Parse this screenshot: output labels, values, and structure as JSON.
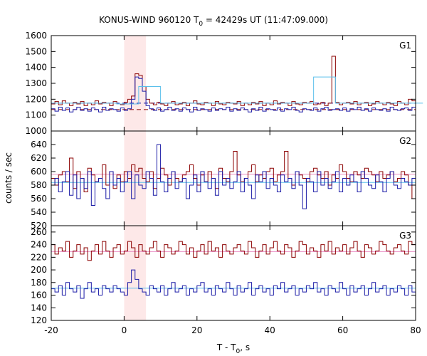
{
  "chart_data": {
    "type": "line",
    "title_main": "KONUS-WIND 960120 T",
    "title_sub": "0",
    "title_rest": " = 42429s UT (11:47:09.000)",
    "xlabel_main": "T - T",
    "xlabel_sub": "0",
    "xlabel_rest": ", s",
    "ylabel": "counts / sec",
    "xlim": [
      -20,
      80
    ],
    "xticks": [
      "-20",
      "0",
      "20",
      "40",
      "60",
      "80"
    ],
    "highlight_interval": [
      0,
      6
    ],
    "colors": {
      "red": "#8b0000",
      "blue": "#1a1aa6",
      "light_blue": "#5bc0eb",
      "pink": "#e98fc4",
      "highlight": "#fde8e8",
      "dashed_blue": "#1a1aa6",
      "dashed_red": "#8b0000"
    },
    "bin_width": 1,
    "panels": [
      {
        "name": "G1",
        "ylim": [
          1000,
          1600
        ],
        "yticks": [
          1000,
          1100,
          1200,
          1300,
          1400,
          1500,
          1600
        ],
        "background_blue": 1175,
        "background_red": 1135,
        "series": [
          {
            "x_start": -20,
            "values": [
              1170,
              1185,
              1165,
              1190,
              1175,
              1160,
              1180,
              1170,
              1185,
              1160,
              1175,
              1165,
              1190,
              1170,
              1180,
              1175,
              1160,
              1185,
              1170,
              1165,
              1180,
              1200,
              1220,
              1360,
              1350,
              1280,
              1200,
              1175,
              1165,
              1180,
              1170,
              1160,
              1175,
              1185,
              1165,
              1170,
              1180,
              1160,
              1175,
              1190,
              1170,
              1165,
              1180,
              1175,
              1160,
              1185,
              1170,
              1165,
              1180,
              1175,
              1170,
              1185,
              1160,
              1175,
              1165,
              1180,
              1170,
              1185,
              1160,
              1175,
              1165,
              1190,
              1170,
              1180,
              1175,
              1160,
              1185,
              1170,
              1165,
              1180,
              1175,
              1185,
              1165,
              1170,
              1180,
              1160,
              1175,
              1470,
              1180,
              1165,
              1175,
              1180,
              1170,
              1185,
              1165,
              1175,
              1180,
              1160,
              1170,
              1185,
              1175,
              1165,
              1180,
              1170,
              1160,
              1185,
              1175,
              1165,
              1200,
              1190
            ]
          },
          {
            "x_start": -20,
            "values": [
              1140,
              1125,
              1150,
              1130,
              1145,
              1120,
              1135,
              1150,
              1130,
              1140,
              1125,
              1145,
              1135,
              1120,
              1150,
              1130,
              1140,
              1135,
              1125,
              1145,
              1130,
              1140,
              1200,
              1340,
              1330,
              1250,
              1160,
              1140,
              1130,
              1145,
              1125,
              1135,
              1150,
              1130,
              1140,
              1125,
              1145,
              1135,
              1120,
              1150,
              1130,
              1140,
              1135,
              1125,
              1145,
              1130,
              1140,
              1135,
              1150,
              1125,
              1140,
              1130,
              1145,
              1135,
              1120,
              1140,
              1130,
              1150,
              1125,
              1140,
              1135,
              1130,
              1145,
              1125,
              1140,
              1135,
              1150,
              1130,
              1120,
              1140,
              1135,
              1130,
              1145,
              1125,
              1140,
              1150,
              1130,
              1135,
              1140,
              1130,
              1145,
              1125,
              1140,
              1135,
              1150,
              1130,
              1140,
              1125,
              1145,
              1135,
              1130,
              1140,
              1125,
              1150,
              1135,
              1130,
              1140,
              1145,
              1130,
              1150
            ]
          },
          {
            "x_start": -20,
            "bin_width": 6,
            "values": [
              1175,
              1175,
              1175,
              1170,
              1280,
              1175,
              1175,
              1175,
              1175,
              1175,
              1175,
              1175,
              1340,
              1175,
              1175,
              1175,
              1175
            ]
          }
        ]
      },
      {
        "name": "G2",
        "ylim": [
          520,
          660
        ],
        "yticks": [
          520,
          540,
          560,
          580,
          600,
          620,
          640
        ],
        "background_blue": 584,
        "background_red": 596,
        "series": [
          {
            "x_start": -20,
            "values": [
              590,
              580,
              595,
              600,
              585,
              620,
              575,
              600,
              590,
              570,
              605,
              595,
              585,
              590,
              610,
              580,
              600,
              575,
              595,
              585,
              600,
              590,
              610,
              600,
              605,
              590,
              585,
              600,
              575,
              590,
              605,
              595,
              580,
              600,
              590,
              585,
              595,
              600,
              610,
              590,
              580,
              595,
              585,
              600,
              590,
              575,
              605,
              590,
              585,
              600,
              630,
              595,
              585,
              590,
              600,
              610,
              585,
              595,
              590,
              600,
              605,
              585,
              595,
              600,
              630,
              590,
              580,
              600,
              595,
              590,
              585,
              600,
              605,
              595,
              590,
              600,
              580,
              595,
              590,
              610,
              600,
              590,
              585,
              600,
              595,
              590,
              605,
              600,
              595,
              585,
              600,
              590,
              595,
              600,
              585,
              590,
              600,
              595,
              580,
              560
            ]
          },
          {
            "x_start": -20,
            "values": [
              580,
              590,
              570,
              585,
              600,
              565,
              595,
              560,
              590,
              575,
              600,
              550,
              585,
              590,
              575,
              560,
              600,
              580,
              590,
              570,
              585,
              600,
              560,
              595,
              580,
              575,
              600,
              590,
              565,
              640,
              585,
              570,
              590,
              600,
              575,
              585,
              590,
              560,
              580,
              595,
              570,
              600,
              585,
              575,
              590,
              565,
              600,
              580,
              590,
              575,
              585,
              600,
              570,
              590,
              580,
              560,
              595,
              585,
              600,
              575,
              590,
              580,
              570,
              595,
              585,
              590,
              575,
              600,
              580,
              545,
              590,
              585,
              570,
              600,
              580,
              590,
              575,
              585,
              600,
              570,
              590,
              580,
              595,
              585,
              570,
              600,
              590,
              580,
              575,
              595,
              585,
              570,
              590,
              600,
              580,
              575,
              590,
              585,
              580,
              590
            ]
          }
        ]
      },
      {
        "name": "G3",
        "ylim": [
          120,
          270
        ],
        "yticks": [
          120,
          140,
          160,
          180,
          200,
          220,
          240,
          260
        ],
        "background_blue": 171,
        "background_red": 229,
        "series": [
          {
            "x_start": -20,
            "values": [
              240,
              225,
              235,
              230,
              245,
              220,
              230,
              240,
              225,
              235,
              215,
              230,
              240,
              225,
              245,
              230,
              220,
              235,
              240,
              225,
              230,
              245,
              235,
              220,
              240,
              230,
              225,
              235,
              245,
              230,
              220,
              240,
              235,
              225,
              230,
              245,
              240,
              225,
              235,
              220,
              230,
              240,
              225,
              245,
              230,
              235,
              220,
              240,
              230,
              225,
              235,
              240,
              230,
              225,
              245,
              235,
              220,
              230,
              240,
              225,
              235,
              245,
              230,
              225,
              240,
              235,
              220,
              230,
              245,
              240,
              225,
              235,
              230,
              220,
              240,
              230,
              245,
              225,
              235,
              230,
              240,
              225,
              235,
              245,
              230,
              220,
              240,
              235,
              225,
              230,
              245,
              240,
              230,
              225,
              235,
              240,
              230,
              225,
              245,
              240
            ]
          },
          {
            "x_start": -20,
            "values": [
              170,
              165,
              175,
              160,
              180,
              170,
              165,
              175,
              155,
              170,
              180,
              165,
              170,
              160,
              175,
              170,
              165,
              175,
              170,
              165,
              160,
              180,
              200,
              185,
              170,
              165,
              160,
              175,
              170,
              165,
              175,
              160,
              170,
              180,
              165,
              170,
              175,
              160,
              170,
              165,
              175,
              180,
              165,
              170,
              160,
              175,
              170,
              165,
              180,
              170,
              160,
              175,
              165,
              170,
              180,
              160,
              170,
              175,
              165,
              170,
              160,
              175,
              170,
              180,
              165,
              170,
              175,
              160,
              170,
              165,
              175,
              170,
              180,
              165,
              170,
              160,
              175,
              170,
              165,
              180,
              170,
              160,
              175,
              165,
              170,
              175,
              160,
              170,
              180,
              165,
              170,
              175,
              160,
              170,
              165,
              175,
              170,
              160,
              175,
              165
            ]
          }
        ]
      }
    ]
  }
}
